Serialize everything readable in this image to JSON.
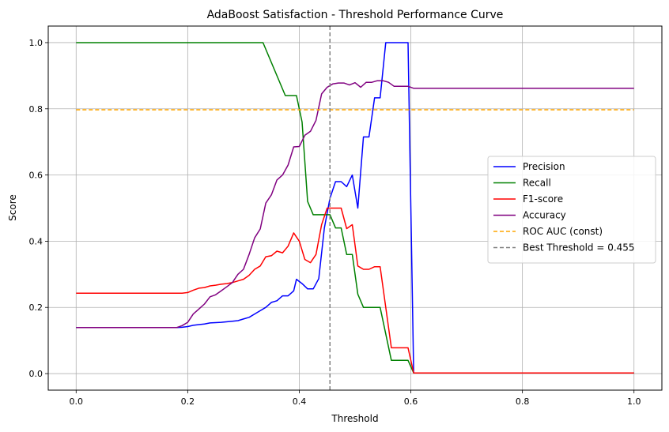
{
  "chart_data": {
    "type": "line",
    "title": "AdaBoost Satisfaction - Threshold Performance Curve",
    "xlabel": "Threshold",
    "ylabel": "Score",
    "xlim": [
      -0.05,
      1.05
    ],
    "ylim": [
      -0.05,
      1.05
    ],
    "xticks": [
      0.0,
      0.2,
      0.4,
      0.6,
      0.8,
      1.0
    ],
    "xtick_labels": [
      "0.0",
      "0.2",
      "0.4",
      "0.6",
      "0.8",
      "1.0"
    ],
    "yticks": [
      0.0,
      0.2,
      0.4,
      0.6,
      0.8,
      1.0
    ],
    "ytick_labels": [
      "0.0",
      "0.2",
      "0.4",
      "0.6",
      "0.8",
      "1.0"
    ],
    "grid": true,
    "legend_position": "center-right",
    "series": [
      {
        "name": "Precision",
        "color": "#0000ff",
        "dashed": false,
        "points": [
          [
            0.0,
            0.139
          ],
          [
            0.18,
            0.139
          ],
          [
            0.19,
            0.14
          ],
          [
            0.2,
            0.142
          ],
          [
            0.21,
            0.146
          ],
          [
            0.22,
            0.148
          ],
          [
            0.23,
            0.15
          ],
          [
            0.24,
            0.153
          ],
          [
            0.26,
            0.155
          ],
          [
            0.28,
            0.158
          ],
          [
            0.29,
            0.16
          ],
          [
            0.3,
            0.165
          ],
          [
            0.31,
            0.17
          ],
          [
            0.32,
            0.18
          ],
          [
            0.33,
            0.19
          ],
          [
            0.34,
            0.2
          ],
          [
            0.35,
            0.215
          ],
          [
            0.36,
            0.22
          ],
          [
            0.37,
            0.235
          ],
          [
            0.38,
            0.235
          ],
          [
            0.39,
            0.25
          ],
          [
            0.395,
            0.285
          ],
          [
            0.405,
            0.272
          ],
          [
            0.415,
            0.256
          ],
          [
            0.425,
            0.256
          ],
          [
            0.435,
            0.287
          ],
          [
            0.445,
            0.44
          ],
          [
            0.455,
            0.53
          ],
          [
            0.465,
            0.58
          ],
          [
            0.475,
            0.58
          ],
          [
            0.485,
            0.565
          ],
          [
            0.495,
            0.6
          ],
          [
            0.505,
            0.5
          ],
          [
            0.515,
            0.715
          ],
          [
            0.525,
            0.715
          ],
          [
            0.535,
            0.833
          ],
          [
            0.545,
            0.833
          ],
          [
            0.555,
            1.0
          ],
          [
            0.595,
            1.0
          ],
          [
            0.605,
            0.002
          ],
          [
            1.0,
            0.002
          ]
        ]
      },
      {
        "name": "Recall",
        "color": "#008000",
        "dashed": false,
        "points": [
          [
            0.0,
            1.0
          ],
          [
            0.335,
            1.0
          ],
          [
            0.375,
            0.84
          ],
          [
            0.395,
            0.84
          ],
          [
            0.405,
            0.76
          ],
          [
            0.415,
            0.52
          ],
          [
            0.425,
            0.48
          ],
          [
            0.445,
            0.48
          ],
          [
            0.455,
            0.48
          ],
          [
            0.465,
            0.44
          ],
          [
            0.475,
            0.44
          ],
          [
            0.485,
            0.36
          ],
          [
            0.495,
            0.36
          ],
          [
            0.505,
            0.24
          ],
          [
            0.515,
            0.2
          ],
          [
            0.545,
            0.2
          ],
          [
            0.565,
            0.04
          ],
          [
            0.595,
            0.04
          ],
          [
            0.605,
            0.002
          ],
          [
            1.0,
            0.002
          ]
        ]
      },
      {
        "name": "F1-score",
        "color": "#ff0000",
        "dashed": false,
        "points": [
          [
            0.0,
            0.243
          ],
          [
            0.19,
            0.243
          ],
          [
            0.2,
            0.245
          ],
          [
            0.21,
            0.252
          ],
          [
            0.22,
            0.258
          ],
          [
            0.23,
            0.26
          ],
          [
            0.24,
            0.265
          ],
          [
            0.25,
            0.267
          ],
          [
            0.26,
            0.27
          ],
          [
            0.27,
            0.272
          ],
          [
            0.28,
            0.275
          ],
          [
            0.29,
            0.28
          ],
          [
            0.3,
            0.285
          ],
          [
            0.31,
            0.297
          ],
          [
            0.32,
            0.315
          ],
          [
            0.33,
            0.325
          ],
          [
            0.34,
            0.353
          ],
          [
            0.35,
            0.356
          ],
          [
            0.36,
            0.37
          ],
          [
            0.37,
            0.365
          ],
          [
            0.38,
            0.385
          ],
          [
            0.39,
            0.425
          ],
          [
            0.4,
            0.4
          ],
          [
            0.41,
            0.345
          ],
          [
            0.42,
            0.335
          ],
          [
            0.43,
            0.36
          ],
          [
            0.44,
            0.45
          ],
          [
            0.45,
            0.5
          ],
          [
            0.465,
            0.5
          ],
          [
            0.475,
            0.5
          ],
          [
            0.485,
            0.438
          ],
          [
            0.495,
            0.45
          ],
          [
            0.505,
            0.325
          ],
          [
            0.515,
            0.315
          ],
          [
            0.525,
            0.315
          ],
          [
            0.535,
            0.323
          ],
          [
            0.545,
            0.323
          ],
          [
            0.565,
            0.078
          ],
          [
            0.595,
            0.078
          ],
          [
            0.605,
            0.002
          ],
          [
            1.0,
            0.002
          ]
        ]
      },
      {
        "name": "Accuracy",
        "color": "#800080",
        "dashed": false,
        "points": [
          [
            0.0,
            0.139
          ],
          [
            0.18,
            0.139
          ],
          [
            0.19,
            0.145
          ],
          [
            0.2,
            0.155
          ],
          [
            0.21,
            0.18
          ],
          [
            0.22,
            0.195
          ],
          [
            0.23,
            0.21
          ],
          [
            0.24,
            0.232
          ],
          [
            0.25,
            0.238
          ],
          [
            0.26,
            0.25
          ],
          [
            0.27,
            0.262
          ],
          [
            0.28,
            0.275
          ],
          [
            0.29,
            0.3
          ],
          [
            0.3,
            0.315
          ],
          [
            0.31,
            0.36
          ],
          [
            0.32,
            0.41
          ],
          [
            0.33,
            0.437
          ],
          [
            0.34,
            0.515
          ],
          [
            0.35,
            0.54
          ],
          [
            0.36,
            0.585
          ],
          [
            0.37,
            0.6
          ],
          [
            0.38,
            0.63
          ],
          [
            0.39,
            0.685
          ],
          [
            0.4,
            0.686
          ],
          [
            0.41,
            0.72
          ],
          [
            0.42,
            0.732
          ],
          [
            0.43,
            0.765
          ],
          [
            0.44,
            0.845
          ],
          [
            0.45,
            0.865
          ],
          [
            0.46,
            0.875
          ],
          [
            0.47,
            0.878
          ],
          [
            0.48,
            0.878
          ],
          [
            0.49,
            0.872
          ],
          [
            0.5,
            0.879
          ],
          [
            0.51,
            0.865
          ],
          [
            0.52,
            0.88
          ],
          [
            0.53,
            0.88
          ],
          [
            0.54,
            0.885
          ],
          [
            0.55,
            0.885
          ],
          [
            0.56,
            0.88
          ],
          [
            0.57,
            0.868
          ],
          [
            0.595,
            0.868
          ],
          [
            0.605,
            0.862
          ],
          [
            1.0,
            0.862
          ]
        ]
      },
      {
        "name": "ROC AUC (const)",
        "color": "#ffa500",
        "dashed": true,
        "points": [
          [
            0.0,
            0.797
          ],
          [
            1.0,
            0.797
          ]
        ]
      }
    ],
    "reference_line": {
      "name": "Best Threshold = 0.455",
      "color": "#808080",
      "dashed": true,
      "x": 0.455
    }
  }
}
